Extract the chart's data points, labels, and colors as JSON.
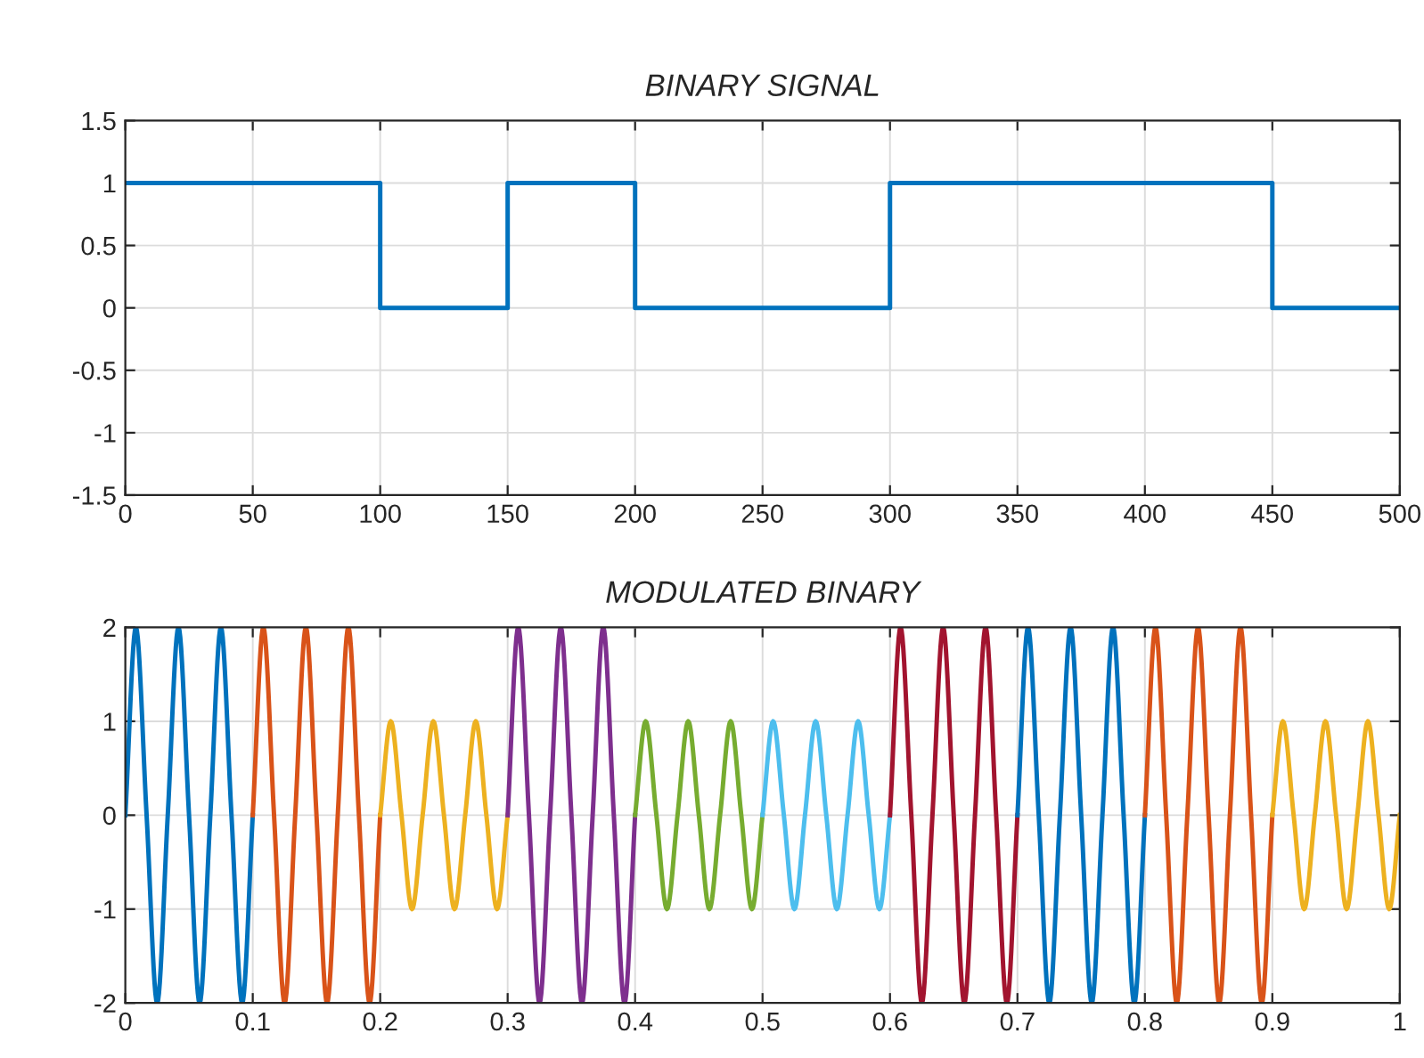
{
  "chart_data": [
    {
      "type": "line",
      "title": "BINARY SIGNAL",
      "xlim": [
        0,
        500
      ],
      "ylim": [
        -1.5,
        1.5
      ],
      "xticks": [
        0,
        50,
        100,
        150,
        200,
        250,
        300,
        350,
        400,
        450,
        500
      ],
      "yticks": [
        -1.5,
        -1,
        -0.5,
        0,
        0.5,
        1,
        1.5
      ],
      "grid": true,
      "series": [
        {
          "color": "#0072bd",
          "x": [
            0,
            100,
            100,
            150,
            150,
            200,
            200,
            300,
            300,
            450,
            450,
            500
          ],
          "values": [
            1,
            1,
            0,
            0,
            1,
            1,
            0,
            0,
            1,
            1,
            0,
            0
          ]
        }
      ]
    },
    {
      "type": "line",
      "title": "MODULATED BINARY",
      "xlim": [
        0,
        1
      ],
      "ylim": [
        -2,
        2
      ],
      "xticks": [
        0,
        0.1,
        0.2,
        0.3,
        0.4,
        0.5,
        0.6,
        0.7,
        0.8,
        0.9,
        1
      ],
      "yticks": [
        -2,
        -1,
        0,
        1,
        2
      ],
      "grid": true,
      "series": [
        {
          "color": "#0072bd",
          "x": [
            0,
            0.0083,
            0.0167,
            0.025,
            0.0333,
            0.0417,
            0.05,
            0.0583,
            0.0667,
            0.075,
            0.0833,
            0.0917,
            0.1
          ],
          "values": [
            0,
            2,
            0,
            -2,
            0,
            2,
            0,
            -2,
            0,
            2,
            0,
            -2,
            0
          ]
        },
        {
          "color": "#d95319",
          "x": [
            0.1,
            0.1083,
            0.1167,
            0.125,
            0.1333,
            0.1417,
            0.15,
            0.1583,
            0.1667,
            0.175,
            0.1833,
            0.1917,
            0.2
          ],
          "values": [
            0,
            2,
            0,
            -2,
            0,
            2,
            0,
            -2,
            0,
            2,
            0,
            -2,
            0
          ]
        },
        {
          "color": "#edb120",
          "x": [
            0.2,
            0.2083,
            0.2167,
            0.225,
            0.2333,
            0.2417,
            0.25,
            0.2583,
            0.2667,
            0.275,
            0.2833,
            0.2917,
            0.3
          ],
          "values": [
            0,
            1,
            0,
            -1,
            0,
            1,
            0,
            -1,
            0,
            1,
            0,
            -1,
            0
          ]
        },
        {
          "color": "#7e2f8e",
          "x": [
            0.3,
            0.3083,
            0.3167,
            0.325,
            0.3333,
            0.3417,
            0.35,
            0.3583,
            0.3667,
            0.375,
            0.3833,
            0.3917,
            0.4
          ],
          "values": [
            0,
            2,
            0,
            -2,
            0,
            2,
            0,
            -2,
            0,
            2,
            0,
            -2,
            0
          ]
        },
        {
          "color": "#77ac30",
          "x": [
            0.4,
            0.4083,
            0.4167,
            0.425,
            0.4333,
            0.4417,
            0.45,
            0.4583,
            0.4667,
            0.475,
            0.4833,
            0.4917,
            0.5
          ],
          "values": [
            0,
            1,
            0,
            -1,
            0,
            1,
            0,
            -1,
            0,
            1,
            0,
            -1,
            0
          ]
        },
        {
          "color": "#4dbeee",
          "x": [
            0.5,
            0.5083,
            0.5167,
            0.525,
            0.5333,
            0.5417,
            0.55,
            0.5583,
            0.5667,
            0.575,
            0.5833,
            0.5917,
            0.6
          ],
          "values": [
            0,
            1,
            0,
            -1,
            0,
            1,
            0,
            -1,
            0,
            1,
            0,
            -1,
            0
          ]
        },
        {
          "color": "#a2142f",
          "x": [
            0.6,
            0.6083,
            0.6167,
            0.625,
            0.6333,
            0.6417,
            0.65,
            0.6583,
            0.6667,
            0.675,
            0.6833,
            0.6917,
            0.7
          ],
          "values": [
            0,
            2,
            0,
            -2,
            0,
            2,
            0,
            -2,
            0,
            2,
            0,
            -2,
            0
          ]
        },
        {
          "color": "#0072bd",
          "x": [
            0.7,
            0.7083,
            0.7167,
            0.725,
            0.7333,
            0.7417,
            0.75,
            0.7583,
            0.7667,
            0.775,
            0.7833,
            0.7917,
            0.8
          ],
          "values": [
            0,
            2,
            0,
            -2,
            0,
            2,
            0,
            -2,
            0,
            2,
            0,
            -2,
            0
          ]
        },
        {
          "color": "#d95319",
          "x": [
            0.8,
            0.8083,
            0.8167,
            0.825,
            0.8333,
            0.8417,
            0.85,
            0.8583,
            0.8667,
            0.875,
            0.8833,
            0.8917,
            0.9
          ],
          "values": [
            0,
            2,
            0,
            -2,
            0,
            2,
            0,
            -2,
            0,
            2,
            0,
            -2,
            0
          ]
        },
        {
          "color": "#edb120",
          "x": [
            0.9,
            0.9083,
            0.9167,
            0.925,
            0.9333,
            0.9417,
            0.95,
            0.9583,
            0.9667,
            0.975,
            0.9833,
            0.9917,
            1
          ],
          "values": [
            0,
            1,
            0,
            -1,
            0,
            1,
            0,
            -1,
            0,
            1,
            0,
            -1,
            0
          ]
        }
      ]
    }
  ]
}
